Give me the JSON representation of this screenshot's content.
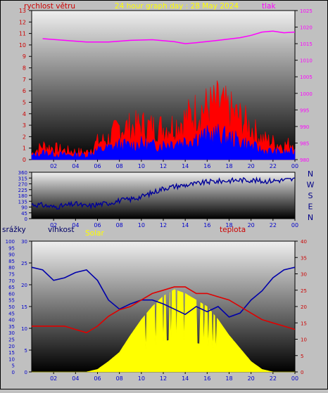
{
  "header": {
    "graph_title": "24 hour graph day : 28 May 2024",
    "wind_speed_label": "rychlost větru",
    "pressure_label": "tlak"
  },
  "bottom_labels": {
    "rain_label": "srážky",
    "humidity_label": "vlhkost",
    "solar_label": "Solar",
    "temperature_label": "teplota"
  },
  "compass_labels": [
    "N",
    "W",
    "S",
    "E",
    "N"
  ],
  "colors": {
    "background": "#c0c0c0",
    "title": "#ffff00",
    "wind_speed": "#ff0000",
    "wind_gust_fill": "#ff0000",
    "wind_avg_fill": "#0000ff",
    "pressure": "#ff00ff",
    "direction": "#000099",
    "humidity": "#0000aa",
    "temperature": "#e00000",
    "solar": "#ffff00",
    "axis_blue": "#0000cc"
  },
  "chart_data": [
    {
      "type": "line",
      "id": "wind-pressure",
      "x_ticks": [
        "02",
        "04",
        "06",
        "08",
        "10",
        "12",
        "14",
        "16",
        "18",
        "20",
        "22",
        "00"
      ],
      "y_left": {
        "label": "rychlost větru",
        "min": 0,
        "max": 13,
        "ticks": [
          "0",
          "1",
          "2",
          "3",
          "4",
          "5",
          "6",
          "7",
          "8",
          "9",
          "10",
          "11",
          "12",
          "13"
        ]
      },
      "y_right": {
        "label": "tlak",
        "min": 980,
        "max": 1025,
        "ticks": [
          "980",
          "985",
          "990",
          "995",
          "1000",
          "1005",
          "1010",
          "1015",
          "1020",
          "1025"
        ]
      },
      "series": [
        {
          "name": "tlak",
          "axis": "right",
          "x": [
            1,
            3,
            5,
            7,
            9,
            11,
            13,
            14,
            15,
            17,
            19,
            20,
            21,
            22,
            23,
            24
          ],
          "values": [
            1016.5,
            1016,
            1015.5,
            1015.5,
            1016,
            1016.2,
            1015.6,
            1015,
            1015.3,
            1016,
            1016.8,
            1017.5,
            1018.5,
            1018.8,
            1018.3,
            1018.5
          ]
        },
        {
          "name": "gust",
          "axis": "left",
          "x": [
            0,
            1,
            2,
            3,
            4,
            5,
            6,
            7,
            8,
            9,
            10,
            11,
            12,
            13,
            14,
            15,
            16,
            17,
            18,
            19,
            20,
            21,
            22,
            23,
            24
          ],
          "values": [
            0.5,
            1.2,
            1.0,
            0.8,
            0.7,
            0.6,
            1.5,
            1.8,
            2.8,
            2.8,
            3.0,
            2.8,
            2.8,
            3.0,
            3.5,
            4.2,
            4.5,
            4.8,
            4.2,
            3.6,
            2.8,
            1.8,
            1.5,
            1.2,
            1.5
          ]
        },
        {
          "name": "avg",
          "axis": "left",
          "x": [
            0,
            1,
            2,
            3,
            4,
            5,
            6,
            7,
            8,
            9,
            10,
            11,
            12,
            13,
            14,
            15,
            16,
            17,
            18,
            19,
            20,
            21,
            22,
            23,
            24
          ],
          "values": [
            0.3,
            0.6,
            0.5,
            0.4,
            0.4,
            0.4,
            0.8,
            1.0,
            1.3,
            1.2,
            1.4,
            1.2,
            1.3,
            1.5,
            1.6,
            1.9,
            2.1,
            2.2,
            1.9,
            1.6,
            1.2,
            0.8,
            0.7,
            0.6,
            0.7
          ]
        }
      ]
    },
    {
      "type": "line",
      "id": "wind-direction",
      "x_ticks": [
        "02",
        "04",
        "06",
        "08",
        "10",
        "12",
        "14",
        "16",
        "18",
        "20",
        "22",
        "00"
      ],
      "y": {
        "min": 0,
        "max": 360,
        "ticks": [
          "0",
          "45",
          "90",
          "135",
          "180",
          "225",
          "270",
          "315",
          "360"
        ]
      },
      "series": [
        {
          "name": "směr",
          "x": [
            0,
            1,
            2,
            3,
            4,
            5,
            6,
            7,
            8,
            9,
            10,
            11,
            12,
            13,
            14,
            15,
            16,
            17,
            18,
            19,
            20,
            21,
            22,
            23,
            24
          ],
          "values": [
            110,
            105,
            90,
            100,
            115,
            95,
            110,
            120,
            140,
            150,
            170,
            200,
            235,
            250,
            260,
            270,
            285,
            290,
            295,
            300,
            300,
            290,
            295,
            300,
            305
          ]
        }
      ]
    },
    {
      "type": "line",
      "id": "rain-humidity-solar-temp",
      "x_ticks": [
        "02",
        "04",
        "06",
        "08",
        "10",
        "12",
        "14",
        "16",
        "18",
        "20",
        "22",
        "00"
      ],
      "y_rain": {
        "label": "srážky",
        "min": 0,
        "max": 100,
        "ticks": [
          "0",
          "5",
          "10",
          "15",
          "20",
          "25",
          "30",
          "35",
          "40",
          "45",
          "50",
          "55",
          "60",
          "65",
          "70",
          "75",
          "80",
          "85",
          "90",
          "95",
          "100"
        ]
      },
      "y_humidity": {
        "label": "vlhkost",
        "min": 0,
        "max": 30,
        "ticks": [
          "0",
          "5",
          "10",
          "15",
          "20",
          "25",
          "30"
        ]
      },
      "y_temp": {
        "label": "teplota",
        "min": 0,
        "max": 40,
        "ticks": [
          "0",
          "5",
          "10",
          "15",
          "20",
          "25",
          "30",
          "35",
          "40"
        ]
      },
      "series": [
        {
          "name": "vlhkost",
          "x": [
            0,
            1,
            2,
            3,
            4,
            5,
            6,
            7,
            8,
            9,
            10,
            11,
            12,
            13,
            14,
            15,
            16,
            17,
            18,
            19,
            20,
            21,
            22,
            23,
            24
          ],
          "values": [
            80,
            78,
            70,
            72,
            76,
            78,
            70,
            55,
            48,
            52,
            55,
            55,
            52,
            48,
            44,
            50,
            46,
            50,
            42,
            45,
            55,
            62,
            72,
            78,
            80
          ]
        },
        {
          "name": "teplota",
          "x": [
            0,
            1,
            2,
            3,
            4,
            5,
            6,
            7,
            8,
            9,
            10,
            11,
            12,
            13,
            14,
            15,
            16,
            17,
            18,
            19,
            20,
            21,
            22,
            23,
            24
          ],
          "values": [
            14,
            14,
            14,
            14,
            13,
            12,
            14,
            17,
            19,
            20,
            22,
            24,
            25,
            26,
            26,
            24,
            24,
            23,
            22,
            20,
            18,
            16,
            15,
            14,
            13
          ]
        },
        {
          "name": "Solar",
          "x": [
            0,
            5,
            6,
            7,
            8,
            9,
            10,
            11,
            12,
            13,
            14,
            15,
            16,
            17,
            18,
            19,
            20,
            21,
            22,
            23,
            24
          ],
          "values": [
            0,
            0,
            2,
            8,
            15,
            28,
            40,
            50,
            58,
            63,
            60,
            55,
            50,
            40,
            28,
            18,
            8,
            2,
            0,
            0,
            0
          ]
        }
      ]
    }
  ]
}
